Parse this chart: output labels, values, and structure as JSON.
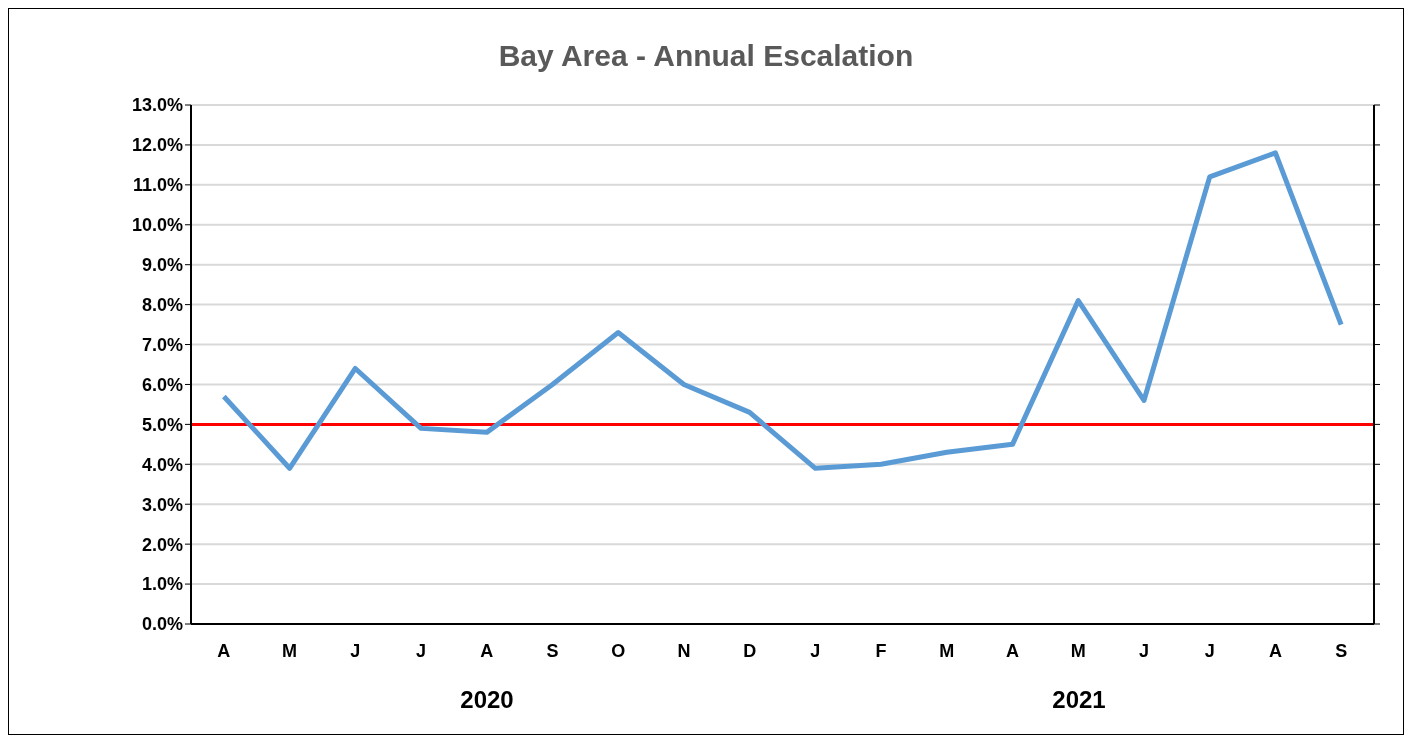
{
  "chart_data": {
    "type": "line",
    "title": "Bay Area - Annual Escalation",
    "categories": [
      "A",
      "M",
      "J",
      "J",
      "A",
      "S",
      "O",
      "N",
      "D",
      "J",
      "F",
      "M",
      "A",
      "M",
      "J",
      "J",
      "A",
      "S"
    ],
    "series": [
      {
        "color": "#5b9bd5",
        "values": [
          5.7,
          3.9,
          6.4,
          4.9,
          4.8,
          6.0,
          7.3,
          6.0,
          5.3,
          3.9,
          4.0,
          4.3,
          4.5,
          8.1,
          5.6,
          11.2,
          11.8,
          7.5
        ]
      }
    ],
    "ylim": [
      0,
      13
    ],
    "yticks": [
      {
        "value": 0,
        "label": "0.0%"
      },
      {
        "value": 1,
        "label": "1.0%"
      },
      {
        "value": 2,
        "label": "2.0%"
      },
      {
        "value": 3,
        "label": "3.0%"
      },
      {
        "value": 4,
        "label": "4.0%"
      },
      {
        "value": 5,
        "label": "5.0%"
      },
      {
        "value": 6,
        "label": "6.0%"
      },
      {
        "value": 7,
        "label": "7.0%"
      },
      {
        "value": 8,
        "label": "8.0%"
      },
      {
        "value": 9,
        "label": "9.0%"
      },
      {
        "value": 10,
        "label": "10.0%"
      },
      {
        "value": 11,
        "label": "11.0%"
      },
      {
        "value": 12,
        "label": "12.0%"
      },
      {
        "value": 13,
        "label": "13.0%"
      }
    ],
    "ref_lines": [
      {
        "axis": "y",
        "value": 5,
        "color": "#ff0000"
      }
    ],
    "annotations": [
      "2020",
      "2021"
    ],
    "grid": "y",
    "marker": "none",
    "line_style": "solid"
  }
}
